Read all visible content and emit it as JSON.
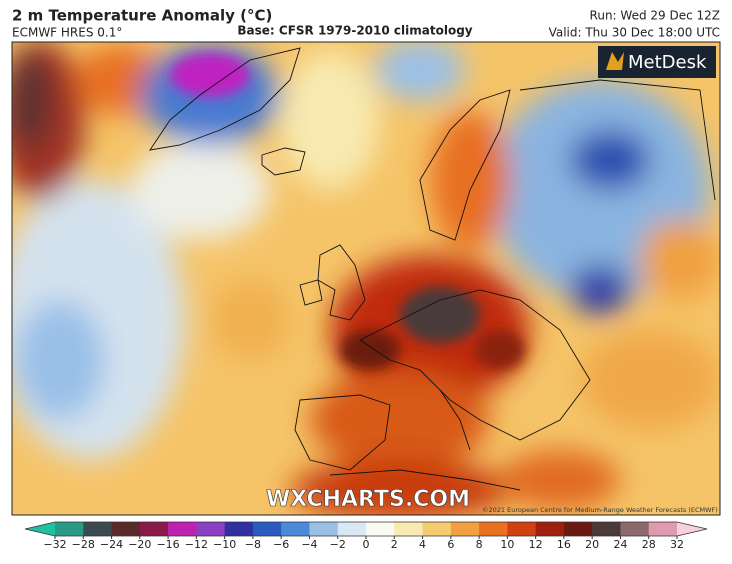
{
  "header": {
    "title": "2 m Temperature Anomaly (°C)",
    "model": "ECMWF HRES 0.1°",
    "base": "Base: CFSR 1979-2010 climatology",
    "run": "Run: Wed 29 Dec 12Z",
    "valid": "Valid: Thu 30 Dec 18:00 UTC"
  },
  "logo": "MetDesk",
  "watermark": "WXCHARTS.COM",
  "copyright": "©2021 European Centre for Medium-Range Weather Forecasts (ECMWF)",
  "colorbar": {
    "ticks": [
      {
        "value": -32,
        "label": "−32"
      },
      {
        "value": -28,
        "label": "−28"
      },
      {
        "value": -24,
        "label": "−24"
      },
      {
        "value": -20,
        "label": "−20"
      },
      {
        "value": -16,
        "label": "−16"
      },
      {
        "value": -12,
        "label": "−12"
      },
      {
        "value": -10,
        "label": "−10"
      },
      {
        "value": -8,
        "label": "−8"
      },
      {
        "value": -6,
        "label": "−6"
      },
      {
        "value": -4,
        "label": "−4"
      },
      {
        "value": -2,
        "label": "−2"
      },
      0,
      2,
      4,
      6,
      8,
      10,
      12,
      16,
      20,
      24,
      28,
      32
    ],
    "colors": [
      "#2a9a86",
      "#3a4a50",
      "#5a2a2a",
      "#8a1a4a",
      "#c020b0",
      "#8a40c0",
      "#3030a0",
      "#2a5ac0",
      "#4a8ad8",
      "#9ac0e8",
      "#d8e8f4",
      "#fafaf0",
      "#f8eab0",
      "#f5cc70",
      "#f0a040",
      "#e87020",
      "#d04010",
      "#a02010",
      "#6a1a10",
      "#4a3a3a",
      "#8a6a6a",
      "#e09ab0"
    ],
    "under_color": "#20c0a0",
    "over_color": "#f8d0e0"
  }
}
